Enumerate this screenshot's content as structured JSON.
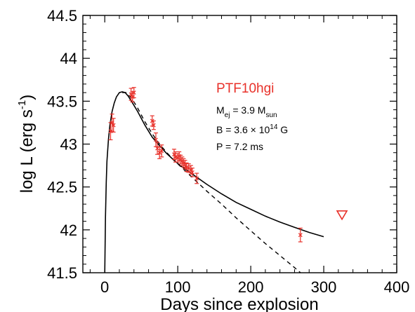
{
  "chart_data": {
    "type": "scatter",
    "xlabel": "Days since explosion",
    "ylabel": "log L (erg s",
    "ylabel_sup": "-1",
    "ylabel_close": ")",
    "xlim": [
      -30,
      400
    ],
    "ylim": [
      41.5,
      44.5
    ],
    "xticks": [
      0,
      100,
      200,
      300,
      400
    ],
    "yticks": [
      41.5,
      42,
      42.5,
      43,
      43.5,
      44,
      44.5
    ],
    "xtick_labels": [
      "0",
      "100",
      "200",
      "300",
      "400"
    ],
    "ytick_labels": [
      "41.5",
      "42",
      "42.5",
      "43",
      "43.5",
      "44",
      "44.5"
    ],
    "annotation": {
      "name": "PTF10hgi",
      "mej_label": "M",
      "mej_sub": "ej",
      "mej_value": " = 3.9 M",
      "mej_unit_sub": "sun",
      "b_label": "B = 3.6 × 10",
      "b_exp": "14",
      "b_unit": " G",
      "p_label": "P = 7.2 ms"
    },
    "series": [
      {
        "style": "solid",
        "color": "#000000",
        "x": [
          0,
          1,
          2,
          3,
          5,
          7,
          10,
          13,
          16,
          20,
          24,
          28,
          32,
          38,
          45,
          55,
          65,
          75,
          85,
          95,
          105,
          115,
          125,
          140,
          160,
          180,
          200,
          220,
          240,
          260,
          280,
          300
        ],
        "y": [
          41.5,
          42.15,
          42.55,
          42.8,
          43.05,
          43.22,
          43.38,
          43.48,
          43.55,
          43.6,
          43.61,
          43.6,
          43.56,
          43.48,
          43.38,
          43.22,
          43.08,
          42.98,
          42.89,
          42.81,
          42.74,
          42.68,
          42.62,
          42.53,
          42.42,
          42.32,
          42.24,
          42.16,
          42.09,
          42.03,
          41.97,
          41.92
        ]
      },
      {
        "style": "dashed",
        "color": "#000000",
        "x": [
          24,
          30,
          38,
          45,
          55,
          65,
          75,
          85,
          95,
          105,
          115,
          125,
          140,
          160,
          180,
          200,
          220,
          240,
          260,
          275
        ],
        "y": [
          43.6,
          43.6,
          43.52,
          43.42,
          43.26,
          43.12,
          43.0,
          42.9,
          42.81,
          42.73,
          42.65,
          42.57,
          42.45,
          42.3,
          42.14,
          41.99,
          41.84,
          41.7,
          41.56,
          41.45
        ]
      }
    ],
    "points": {
      "color": "#e8312a",
      "x": [
        8,
        10,
        12,
        36,
        38,
        40,
        65,
        67,
        70,
        72,
        75,
        78,
        95,
        97,
        100,
        102,
        104,
        106,
        108,
        110,
        112,
        115,
        118,
        120,
        126,
        268
      ],
      "y": [
        43.15,
        43.25,
        43.22,
        43.58,
        43.55,
        43.6,
        43.27,
        43.22,
        43.05,
        42.95,
        42.9,
        42.92,
        42.88,
        42.85,
        42.84,
        42.86,
        42.82,
        42.8,
        42.78,
        42.76,
        42.73,
        42.72,
        42.7,
        42.67,
        42.6,
        41.94
      ],
      "err": [
        0.1,
        0.1,
        0.08,
        0.07,
        0.06,
        0.06,
        0.06,
        0.05,
        0.08,
        0.07,
        0.07,
        0.07,
        0.06,
        0.06,
        0.05,
        0.05,
        0.05,
        0.05,
        0.05,
        0.05,
        0.05,
        0.05,
        0.05,
        0.05,
        0.06,
        0.08
      ]
    },
    "upper_limit": {
      "x": 325,
      "y": 42.18,
      "color": "#e8312a"
    }
  }
}
